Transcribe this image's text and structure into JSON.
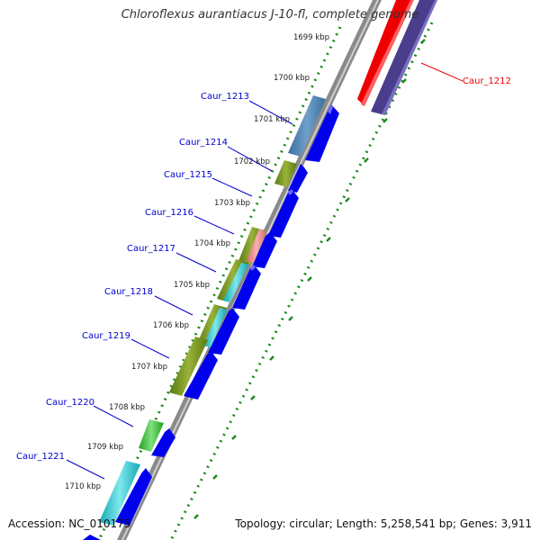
{
  "title": "Chloroflexus aurantiacus J-10-fl, complete genome",
  "footer": {
    "accession": "Accession: NC_010175",
    "topology": "Topology: circular; Length: 5,258,541 bp; Genes: 3,911"
  },
  "colors": {
    "label_blue": "#0000cc",
    "highlight_red": "#ee0000",
    "tick_green": "#1a8a1a",
    "cds_blue": "#0000ee",
    "backbone_gray": "#888888"
  },
  "ticks": [
    "1699 kbp",
    "1700 kbp",
    "1701 kbp",
    "1702 kbp",
    "1703 kbp",
    "1704 kbp",
    "1705 kbp",
    "1706 kbp",
    "1707 kbp",
    "1708 kbp",
    "1709 kbp",
    "1710 kbp"
  ],
  "genes": [
    {
      "name": "Caur_1212",
      "highlight": true
    },
    {
      "name": "Caur_1213",
      "highlight": false
    },
    {
      "name": "Caur_1214",
      "highlight": false
    },
    {
      "name": "Caur_1215",
      "highlight": false
    },
    {
      "name": "Caur_1216",
      "highlight": false
    },
    {
      "name": "Caur_1217",
      "highlight": false
    },
    {
      "name": "Caur_1218",
      "highlight": false
    },
    {
      "name": "Caur_1219",
      "highlight": false
    },
    {
      "name": "Caur_1220",
      "highlight": false
    },
    {
      "name": "Caur_1221",
      "highlight": false
    }
  ]
}
